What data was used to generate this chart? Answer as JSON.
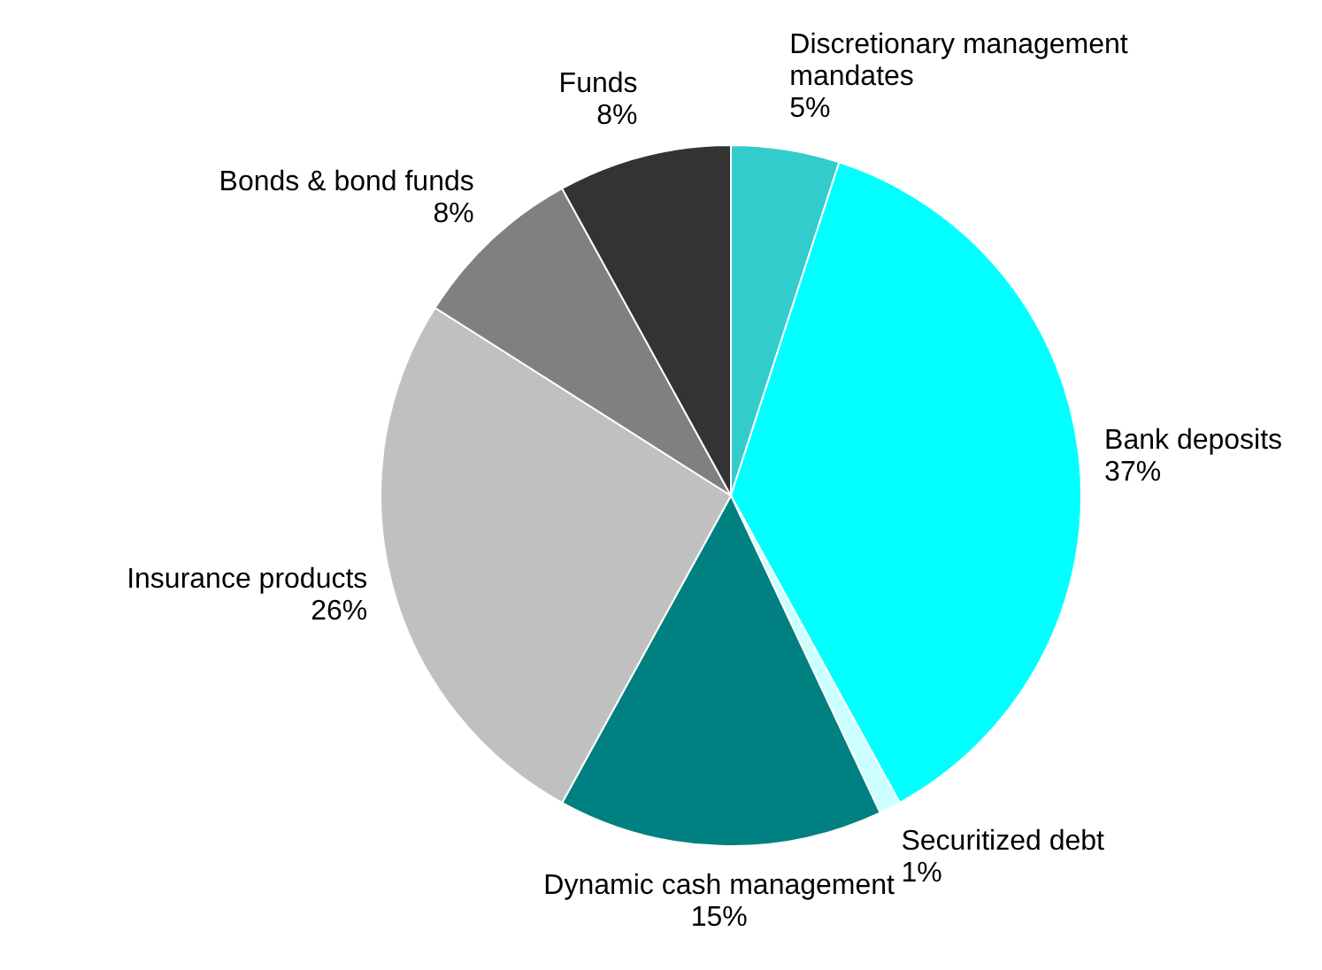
{
  "chart_data": {
    "type": "pie",
    "categories": [
      "Discretionary management mandates",
      "Bank deposits",
      "Securitized debt",
      "Dynamic cash management",
      "Insurance products",
      "Bonds & bond funds",
      "Funds"
    ],
    "values": [
      5,
      37,
      1,
      15,
      26,
      8,
      8
    ],
    "value_labels": [
      "5%",
      "37%",
      "1%",
      "15%",
      "26%",
      "8%",
      "8%"
    ],
    "colors": [
      "#33cccc",
      "#00ffff",
      "#ccffff",
      "#008080",
      "#c0c0c0",
      "#808080",
      "#333333"
    ]
  }
}
